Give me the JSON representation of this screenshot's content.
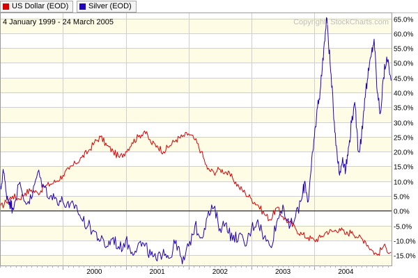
{
  "legend": [
    {
      "label": "US Dollar (EOD)",
      "color": "#dd0000"
    },
    {
      "label": "Silver (EOD)",
      "color": "#2200bb"
    }
  ],
  "chart_data": {
    "type": "line",
    "title": "4 January 1999 - 24 March 2005",
    "watermark": "Copyright, StockCharts.com",
    "x_range": [
      "1999-01-04",
      "2005-03-24"
    ],
    "x_tick_labels": [
      "2000",
      "2001",
      "2002",
      "2003",
      "2004"
    ],
    "y_tick_labels": [
      "65.0%",
      "60.0%",
      "55.0%",
      "50.0%",
      "45.0%",
      "40.0%",
      "35.0%",
      "30.0%",
      "25.0%",
      "20.0%",
      "15.0%",
      "10.0%",
      "5.0%",
      "0.0%",
      "-5.0%",
      "-10.0%",
      "-15.0%"
    ],
    "y_ticks": [
      65,
      60,
      55,
      50,
      45,
      40,
      35,
      30,
      25,
      20,
      15,
      10,
      5,
      0,
      -5,
      -10,
      -15
    ],
    "ylim": [
      -18.5,
      67
    ],
    "y_unit": "%",
    "grid": true,
    "legend_position": "top-left",
    "series": [
      {
        "name": "US Dollar (EOD)",
        "color": "#dd0000",
        "x": [
          1999.0,
          1999.1,
          1999.2,
          1999.3,
          1999.4,
          1999.5,
          1999.6,
          1999.7,
          1999.8,
          1999.9,
          2000.0,
          2000.1,
          2000.2,
          2000.3,
          2000.4,
          2000.5,
          2000.6,
          2000.7,
          2000.8,
          2000.9,
          2001.0,
          2001.1,
          2001.2,
          2001.3,
          2001.4,
          2001.5,
          2001.6,
          2001.7,
          2001.8,
          2001.9,
          2002.0,
          2002.1,
          2002.2,
          2002.3,
          2002.4,
          2002.5,
          2002.6,
          2002.7,
          2002.8,
          2002.9,
          2003.0,
          2003.1,
          2003.2,
          2003.3,
          2003.4,
          2003.5,
          2003.6,
          2003.7,
          2003.8,
          2003.9,
          2004.0,
          2004.1,
          2004.2,
          2004.3,
          2004.4,
          2004.5,
          2004.6,
          2004.7,
          2004.8,
          2004.9,
          2005.0,
          2005.1,
          2005.22
        ],
        "y": [
          1,
          3,
          5,
          4,
          6,
          7,
          6,
          8,
          9,
          10,
          12,
          14,
          16,
          18,
          20,
          23,
          25,
          22,
          20,
          18,
          20,
          23,
          25,
          27,
          23,
          22,
          20,
          22,
          24,
          25,
          26,
          24,
          20,
          14,
          13,
          14,
          13,
          11,
          8,
          6,
          4,
          2,
          -1,
          -3,
          1,
          -2,
          -4,
          -6,
          -8,
          -9,
          -10,
          -9,
          -7,
          -7,
          -6,
          -8,
          -7,
          -9,
          -10,
          -13,
          -15,
          -12,
          -14
        ]
      },
      {
        "name": "Silver (EOD)",
        "color": "#2200bb",
        "x": [
          1999.0,
          1999.05,
          1999.1,
          1999.15,
          1999.2,
          1999.3,
          1999.4,
          1999.5,
          1999.6,
          1999.7,
          1999.8,
          1999.9,
          2000.0,
          2000.1,
          2000.2,
          2000.3,
          2000.4,
          2000.5,
          2000.6,
          2000.7,
          2000.8,
          2000.9,
          2001.0,
          2001.1,
          2001.2,
          2001.3,
          2001.4,
          2001.5,
          2001.6,
          2001.7,
          2001.8,
          2001.9,
          2002.0,
          2002.1,
          2002.2,
          2002.3,
          2002.4,
          2002.5,
          2002.6,
          2002.7,
          2002.8,
          2002.9,
          2003.0,
          2003.1,
          2003.2,
          2003.3,
          2003.4,
          2003.5,
          2003.6,
          2003.7,
          2003.8,
          2003.85,
          2003.9,
          2003.95,
          2004.0,
          2004.05,
          2004.1,
          2004.15,
          2004.2,
          2004.25,
          2004.3,
          2004.35,
          2004.4,
          2004.45,
          2004.5,
          2004.55,
          2004.6,
          2004.65,
          2004.7,
          2004.75,
          2004.8,
          2004.85,
          2004.9,
          2004.95,
          2005.0,
          2005.05,
          2005.1,
          2005.15,
          2005.22
        ],
        "y": [
          5,
          14,
          6,
          3,
          1,
          9,
          3,
          4,
          13,
          8,
          5,
          4,
          3,
          1,
          2,
          -3,
          -5,
          -7,
          -10,
          -12,
          -9,
          -13,
          -10,
          -14,
          -11,
          -12,
          -15,
          -17,
          -13,
          -16,
          -10,
          -18,
          -12,
          -5,
          -9,
          -2,
          1,
          -6,
          -4,
          -10,
          -8,
          -12,
          -6,
          -3,
          -9,
          -12,
          -4,
          2,
          -6,
          -2,
          4,
          10,
          3,
          14,
          25,
          35,
          42,
          55,
          65,
          50,
          35,
          22,
          12,
          18,
          14,
          22,
          32,
          35,
          20,
          25,
          38,
          45,
          52,
          58,
          40,
          33,
          45,
          52,
          44
        ]
      }
    ]
  }
}
